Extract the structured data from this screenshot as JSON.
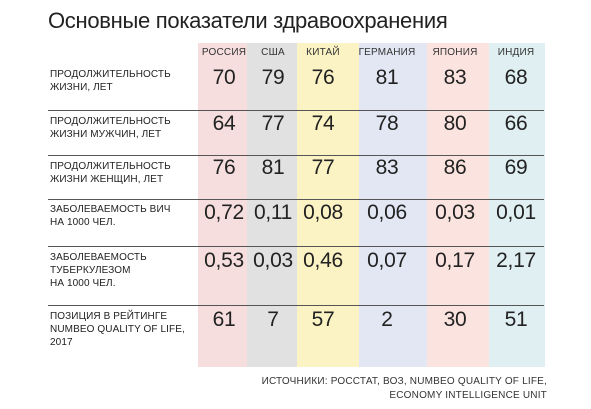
{
  "chart_data": {
    "type": "table",
    "title": "Основные показатели здравоохранения",
    "columns": [
      {
        "name": "РОССИЯ",
        "color": "#f6dede"
      },
      {
        "name": "США",
        "color": "#e1e1e1"
      },
      {
        "name": "КИТАЙ",
        "color": "#fbf3c3"
      },
      {
        "name": "ГЕРМАНИЯ",
        "color": "#e3e7f3"
      },
      {
        "name": "ЯПОНИЯ",
        "color": "#fbe4df"
      },
      {
        "name": "ИНДИЯ",
        "color": "#e0eff2"
      }
    ],
    "rows": [
      {
        "label": [
          "ПРОДОЛЖИТЕЛЬНОСТЬ",
          "ЖИЗНИ, ЛЕТ"
        ],
        "values": [
          "70",
          "79",
          "76",
          "81",
          "83",
          "68"
        ]
      },
      {
        "label": [
          "ПРОДОЛЖИТЕЛЬНОСТЬ",
          "ЖИЗНИ МУЖЧИН, ЛЕТ"
        ],
        "values": [
          "64",
          "77",
          "74",
          "78",
          "80",
          "66"
        ]
      },
      {
        "label": [
          "ПРОДОЛЖИТЕЛЬНОСТЬ",
          "ЖИЗНИ ЖЕНЩИН, ЛЕТ"
        ],
        "values": [
          "76",
          "81",
          "77",
          "83",
          "86",
          "69"
        ]
      },
      {
        "label": [
          "ЗАБОЛЕВАЕМОСТЬ ВИЧ",
          "НА 1000 ЧЕЛ."
        ],
        "values": [
          "0,72",
          "0,11",
          "0,08",
          "0,06",
          "0,03",
          "0,01"
        ]
      },
      {
        "label": [
          "ЗАБОЛЕВАЕМОСТЬ",
          "ТУБЕРКУЛЕЗОМ",
          "НА 1000 ЧЕЛ."
        ],
        "values": [
          "0,53",
          "0,03",
          "0,46",
          "0,07",
          "0,17",
          "2,17"
        ]
      },
      {
        "label": [
          "ПОЗИЦИЯ В РЕЙТИНГЕ",
          "NUMBEO QUALITY OF LIFE,",
          "2017"
        ],
        "values": [
          "61",
          "7",
          "57",
          "2",
          "30",
          "51"
        ]
      }
    ],
    "source": [
      "ИСТОЧНИКИ: РОССТАТ, ВОЗ, NUMBEO QUALITY OF LIFE,",
      "ECONOMY INTELLIGENCE UNIT"
    ]
  }
}
